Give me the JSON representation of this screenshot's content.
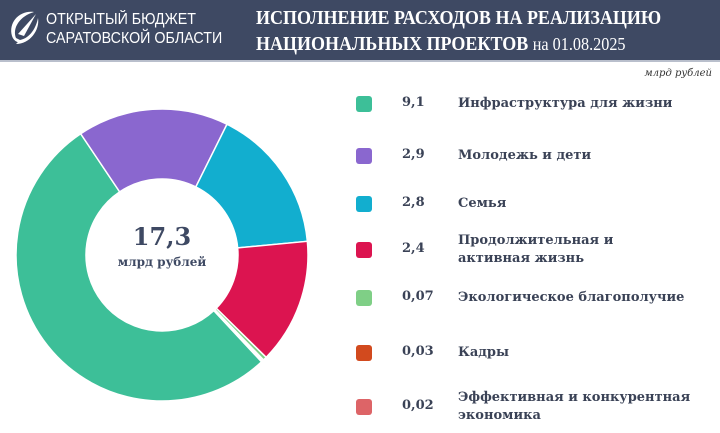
{
  "header": {
    "brand_line1": "ОТКРЫТЫЙ БЮДЖЕТ",
    "brand_line2": "САРАТОВСКОЙ ОБЛАСТИ",
    "title_line1": "ИСПОЛНЕНИЕ РАСХОДОВ НА РЕАЛИЗАЦИЮ",
    "title_line2": "НАЦИОНАЛЬНЫХ ПРОЕКТОВ",
    "date": "на 01.08.2025"
  },
  "unit": "млрд рублей",
  "center": {
    "value": "17,3",
    "unit": "млрд рублей"
  },
  "chart_data": {
    "type": "pie",
    "donut": true,
    "total": 17.3,
    "unit": "млрд рублей",
    "categories": [
      "Инфраструктура для жизни",
      "Молодежь и дети",
      "Семья",
      "Продолжительная и активная жизнь",
      "Экологическое благополучие",
      "Кадры",
      "Эффективная и конкурентная экономика"
    ],
    "values": [
      9.1,
      2.9,
      2.8,
      2.4,
      0.07,
      0.03,
      0.02
    ],
    "labels": [
      "9,1",
      "2,9",
      "2,8",
      "2,4",
      "0,07",
      "0,03",
      "0,02"
    ],
    "colors": [
      "#3dbf98",
      "#8a67cf",
      "#12aecf",
      "#dc1450",
      "#7fcf86",
      "#d24a1e",
      "#dd6467"
    ],
    "legend": "right"
  }
}
